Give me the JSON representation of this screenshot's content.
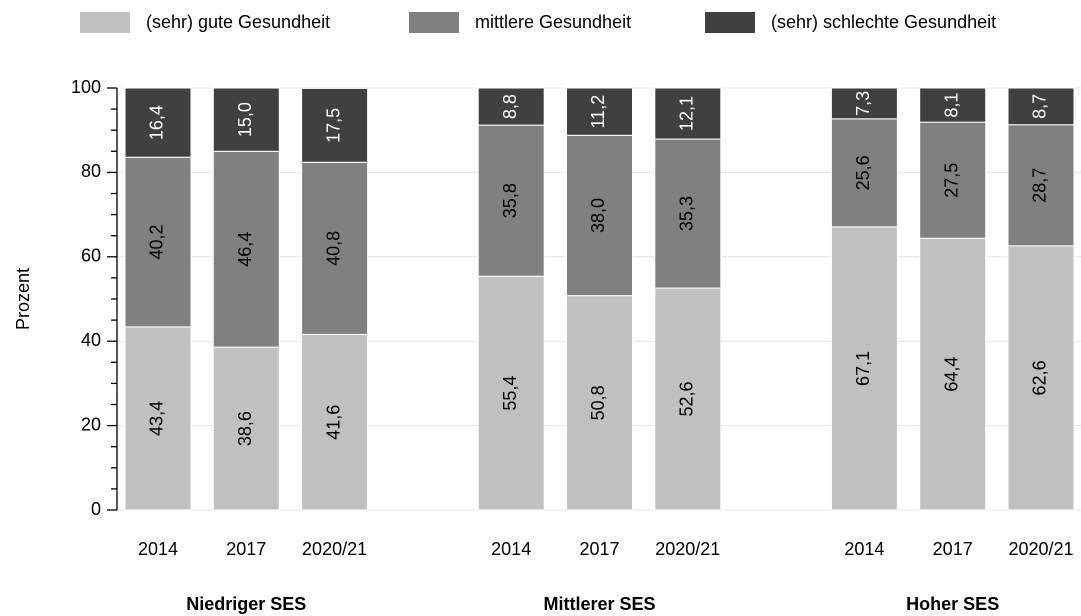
{
  "chart_data": {
    "type": "stacked_bar",
    "y_label": "Prozent",
    "categories": [
      "2014",
      "2017",
      "2020/21",
      "2014",
      "2017",
      "2020/21",
      "2014",
      "2017",
      "2020/21"
    ],
    "group_labels": [
      "Niedriger SES",
      "Mittlerer SES",
      "Hoher SES"
    ],
    "series": [
      {
        "name": "(sehr) gute Gesundheit",
        "color": "#c0c0c0",
        "label_color": "#000000",
        "values": [
          43.4,
          38.6,
          41.6,
          55.4,
          50.8,
          52.6,
          67.1,
          64.4,
          62.6
        ],
        "value_labels": [
          "43,4",
          "38,6",
          "41,6",
          "55,4",
          "50,8",
          "52,6",
          "67,1",
          "64,4",
          "62,6"
        ]
      },
      {
        "name": "mittlere Gesundheit",
        "color": "#808080",
        "label_color": "#000000",
        "values": [
          40.2,
          46.4,
          40.8,
          35.8,
          38.0,
          35.3,
          25.6,
          27.5,
          28.7
        ],
        "value_labels": [
          "40,2",
          "46,4",
          "40,8",
          "35,8",
          "38,0",
          "35,3",
          "25,6",
          "27,5",
          "28,7"
        ]
      },
      {
        "name": "(sehr) schlechte Gesundheit",
        "color": "#404040",
        "label_color": "#ffffff",
        "values": [
          16.4,
          15.0,
          17.5,
          8.8,
          11.2,
          12.1,
          7.3,
          8.1,
          8.7
        ],
        "value_labels": [
          "16,4",
          "15,0",
          "17,5",
          "8,8",
          "11,2",
          "12,1",
          "7,3",
          "8,1",
          "8,7"
        ]
      }
    ],
    "ylim": [
      0,
      100
    ],
    "yticks": [
      0,
      20,
      40,
      60,
      80,
      100
    ],
    "yminor_ticks": [
      5,
      10,
      15,
      25,
      30,
      35,
      45,
      50,
      55,
      65,
      70,
      75,
      85,
      90,
      95
    ],
    "grid": true,
    "legend": "top"
  }
}
